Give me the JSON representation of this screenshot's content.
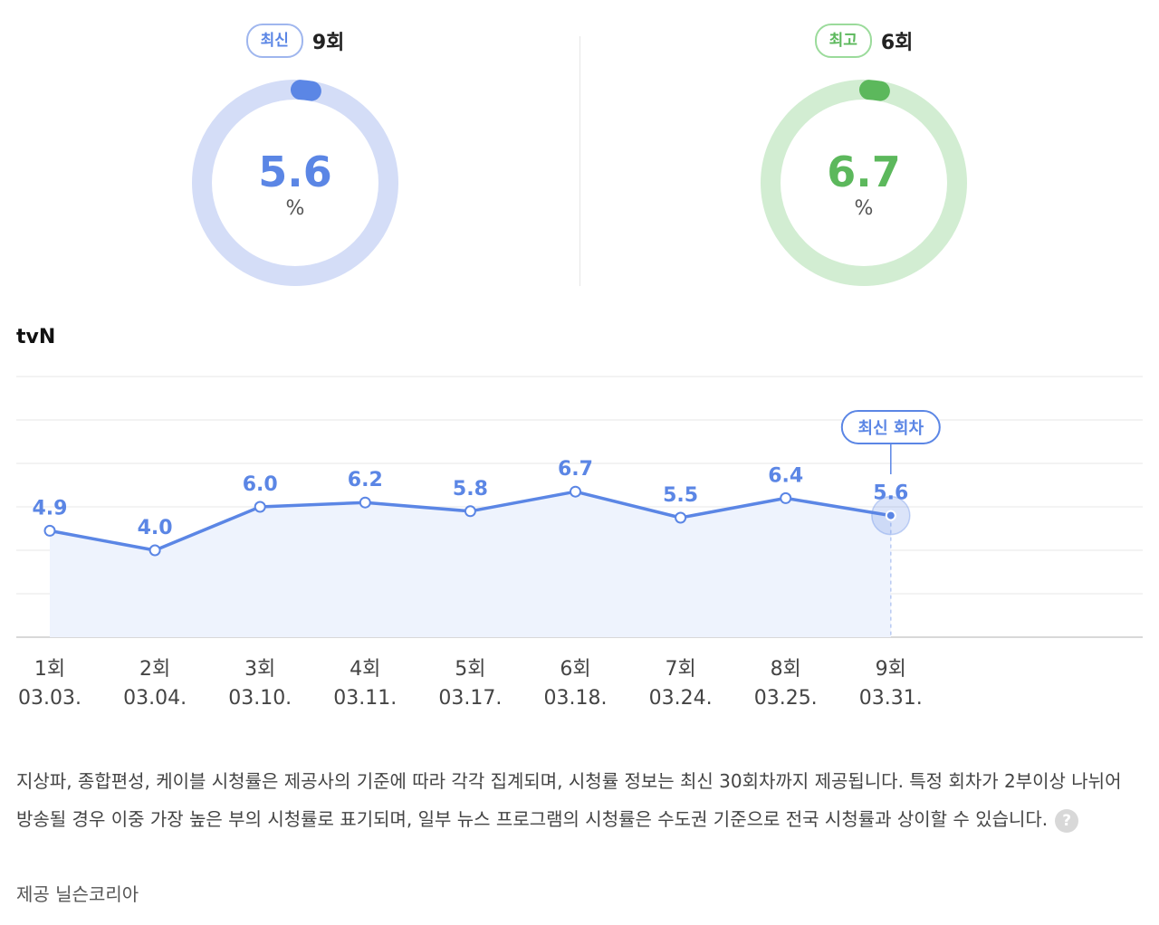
{
  "latest": {
    "badge": "최신",
    "episode": "9회",
    "value": "5.6",
    "unit": "%",
    "color": "#5b86e5",
    "track": "#d4ddf7"
  },
  "highest": {
    "badge": "최고",
    "episode": "6회",
    "value": "6.7",
    "unit": "%",
    "color": "#5cb85c",
    "track": "#d2edd2"
  },
  "channel": "tvN",
  "chart_data": {
    "type": "area",
    "series": [
      {
        "values": [
          4.9,
          4.0,
          6.0,
          6.2,
          5.8,
          6.7,
          5.5,
          6.4,
          5.6
        ]
      }
    ],
    "value_labels": [
      "4.9",
      "4.0",
      "6.0",
      "6.2",
      "5.8",
      "6.7",
      "5.5",
      "6.4",
      "5.6"
    ],
    "categories": [
      "1회",
      "2회",
      "3회",
      "4회",
      "5회",
      "6회",
      "7회",
      "8회",
      "9회"
    ],
    "dates": [
      "03.03.",
      "03.04.",
      "03.10.",
      "03.11.",
      "03.17.",
      "03.18.",
      "03.24.",
      "03.25.",
      "03.31."
    ],
    "annotation": "최신 회차",
    "ylim": [
      0,
      12
    ],
    "grid": true,
    "color": "#5b86e5"
  },
  "note": "지상파, 종합편성, 케이블 시청률은 제공사의 기준에 따라 각각 집계되며, 시청률 정보는 최신 30회차까지 제공됩니다. 특정 회차가 2부이상 나뉘어 방송될 경우 이중 가장 높은 부의 시청률로 표기되며, 일부 뉴스 프로그램의 시청률은 수도권 기준으로 전국 시청률과 상이할 수 있습니다.",
  "help_icon": "?",
  "provider": "제공 닐슨코리아"
}
